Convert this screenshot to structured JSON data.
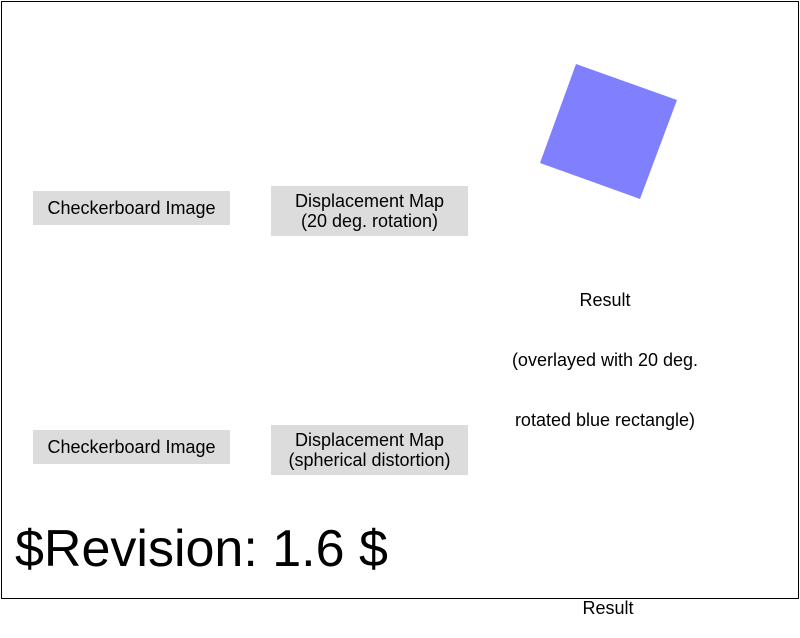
{
  "rows": [
    {
      "checkerboard_label": "Checkerboard Image",
      "displacement_label_line1": "Displacement Map",
      "displacement_label_line2": "(20 deg. rotation)",
      "result_line1": "Result",
      "result_line2": "(overlayed with 20 deg.",
      "result_line3": "rotated blue rectangle)"
    },
    {
      "checkerboard_label": "Checkerboard Image",
      "displacement_label_line1": "Displacement Map",
      "displacement_label_line2": "(spherical distortion)",
      "result_line1": "Result"
    }
  ],
  "rotated_rect": {
    "color": "#8080ff",
    "rotation_deg": 20
  },
  "revision": "$Revision: 1.6 $"
}
